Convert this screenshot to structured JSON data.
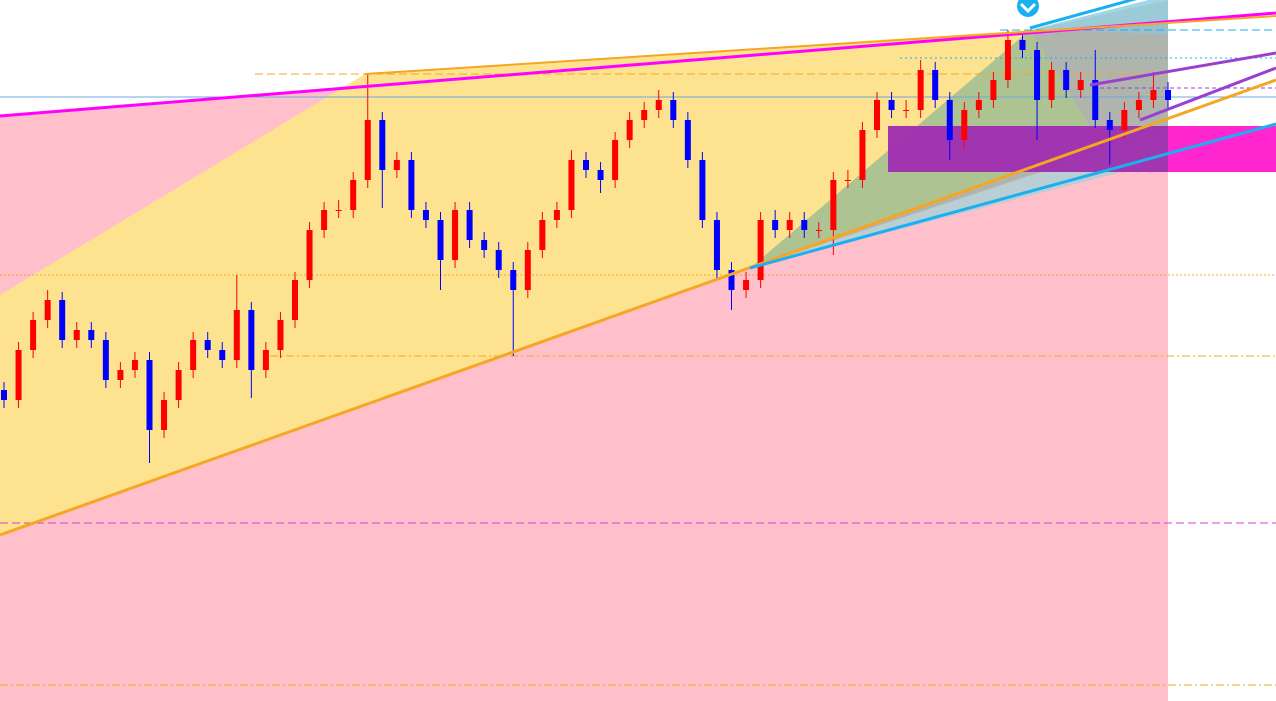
{
  "chart_data": {
    "type": "candlestick",
    "up_color": "#ff0000",
    "down_color": "#0000ff",
    "ylim": [
      0,
      701
    ],
    "open": [
      311,
      301,
      351,
      381,
      401,
      361,
      371,
      361,
      321,
      331,
      341,
      271,
      301,
      331,
      361,
      351,
      341,
      391,
      331,
      351,
      381,
      421,
      471,
      491,
      491,
      521,
      581,
      531,
      541,
      491,
      481,
      441,
      491,
      461,
      451,
      431,
      411,
      451,
      481,
      491,
      541,
      531,
      521,
      561,
      581,
      591,
      601,
      581,
      541,
      481,
      431,
      411,
      421,
      481,
      471,
      481,
      471,
      471,
      521,
      521,
      571,
      601,
      591,
      591,
      631,
      601,
      561,
      591,
      601,
      621,
      661,
      651,
      601,
      631,
      611,
      621,
      581,
      571,
      591,
      601,
      611
    ],
    "high": [
      319,
      359,
      389,
      411,
      409,
      379,
      379,
      369,
      339,
      349,
      349,
      309,
      339,
      369,
      369,
      359,
      426,
      399,
      359,
      389,
      429,
      479,
      499,
      501,
      529,
      628,
      589,
      549,
      549,
      499,
      489,
      499,
      499,
      469,
      459,
      439,
      459,
      489,
      499,
      551,
      549,
      539,
      569,
      589,
      599,
      611,
      609,
      589,
      549,
      489,
      439,
      429,
      489,
      491,
      489,
      489,
      479,
      529,
      531,
      579,
      609,
      609,
      601,
      641,
      639,
      609,
      599,
      609,
      629,
      671,
      669,
      659,
      639,
      639,
      629,
      651,
      589,
      599,
      609,
      629,
      619
    ],
    "low": [
      293,
      293,
      343,
      373,
      353,
      353,
      353,
      313,
      313,
      323,
      238,
      263,
      293,
      323,
      343,
      333,
      333,
      303,
      323,
      343,
      373,
      413,
      463,
      483,
      483,
      513,
      493,
      523,
      483,
      473,
      411,
      433,
      453,
      443,
      423,
      345,
      403,
      443,
      473,
      483,
      523,
      508,
      513,
      553,
      573,
      583,
      573,
      533,
      473,
      421,
      391,
      403,
      413,
      463,
      463,
      463,
      463,
      446,
      513,
      513,
      563,
      583,
      583,
      583,
      593,
      541,
      553,
      583,
      593,
      613,
      643,
      561,
      593,
      603,
      603,
      573,
      536,
      563,
      583,
      593,
      593
    ],
    "close": [
      301,
      351,
      381,
      401,
      361,
      371,
      361,
      321,
      331,
      341,
      271,
      301,
      331,
      361,
      351,
      341,
      391,
      331,
      351,
      381,
      421,
      471,
      491,
      491,
      521,
      581,
      531,
      541,
      491,
      481,
      441,
      491,
      461,
      451,
      431,
      411,
      451,
      481,
      491,
      541,
      531,
      521,
      561,
      581,
      591,
      601,
      581,
      541,
      481,
      431,
      411,
      421,
      481,
      471,
      481,
      471,
      471,
      521,
      521,
      571,
      601,
      591,
      591,
      631,
      601,
      561,
      591,
      601,
      621,
      661,
      651,
      601,
      631,
      611,
      621,
      581,
      571,
      591,
      601,
      611,
      601
    ]
  }
}
